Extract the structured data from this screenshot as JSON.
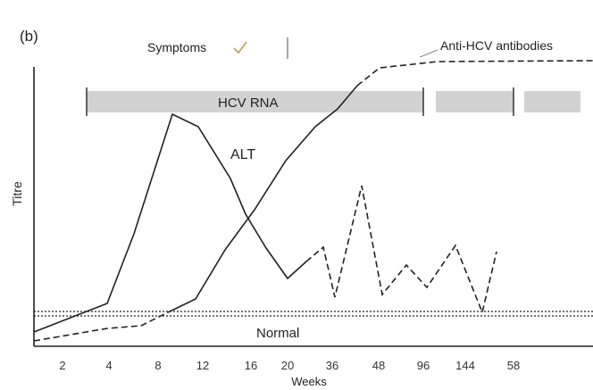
{
  "panel_label": "(b)",
  "symptoms_label": "Symptoms",
  "antibody_label": "Anti-HCV antibodies",
  "hcv_rna_label": "HCV RNA",
  "alt_label": "ALT",
  "y_axis_label": "Titre",
  "x_axis_label": "Weeks",
  "normal_label": "Normal",
  "x_ticks": [
    "2",
    "4",
    "8",
    "12",
    "16",
    "20",
    "36",
    "48",
    "96",
    "144",
    "58"
  ]
}
